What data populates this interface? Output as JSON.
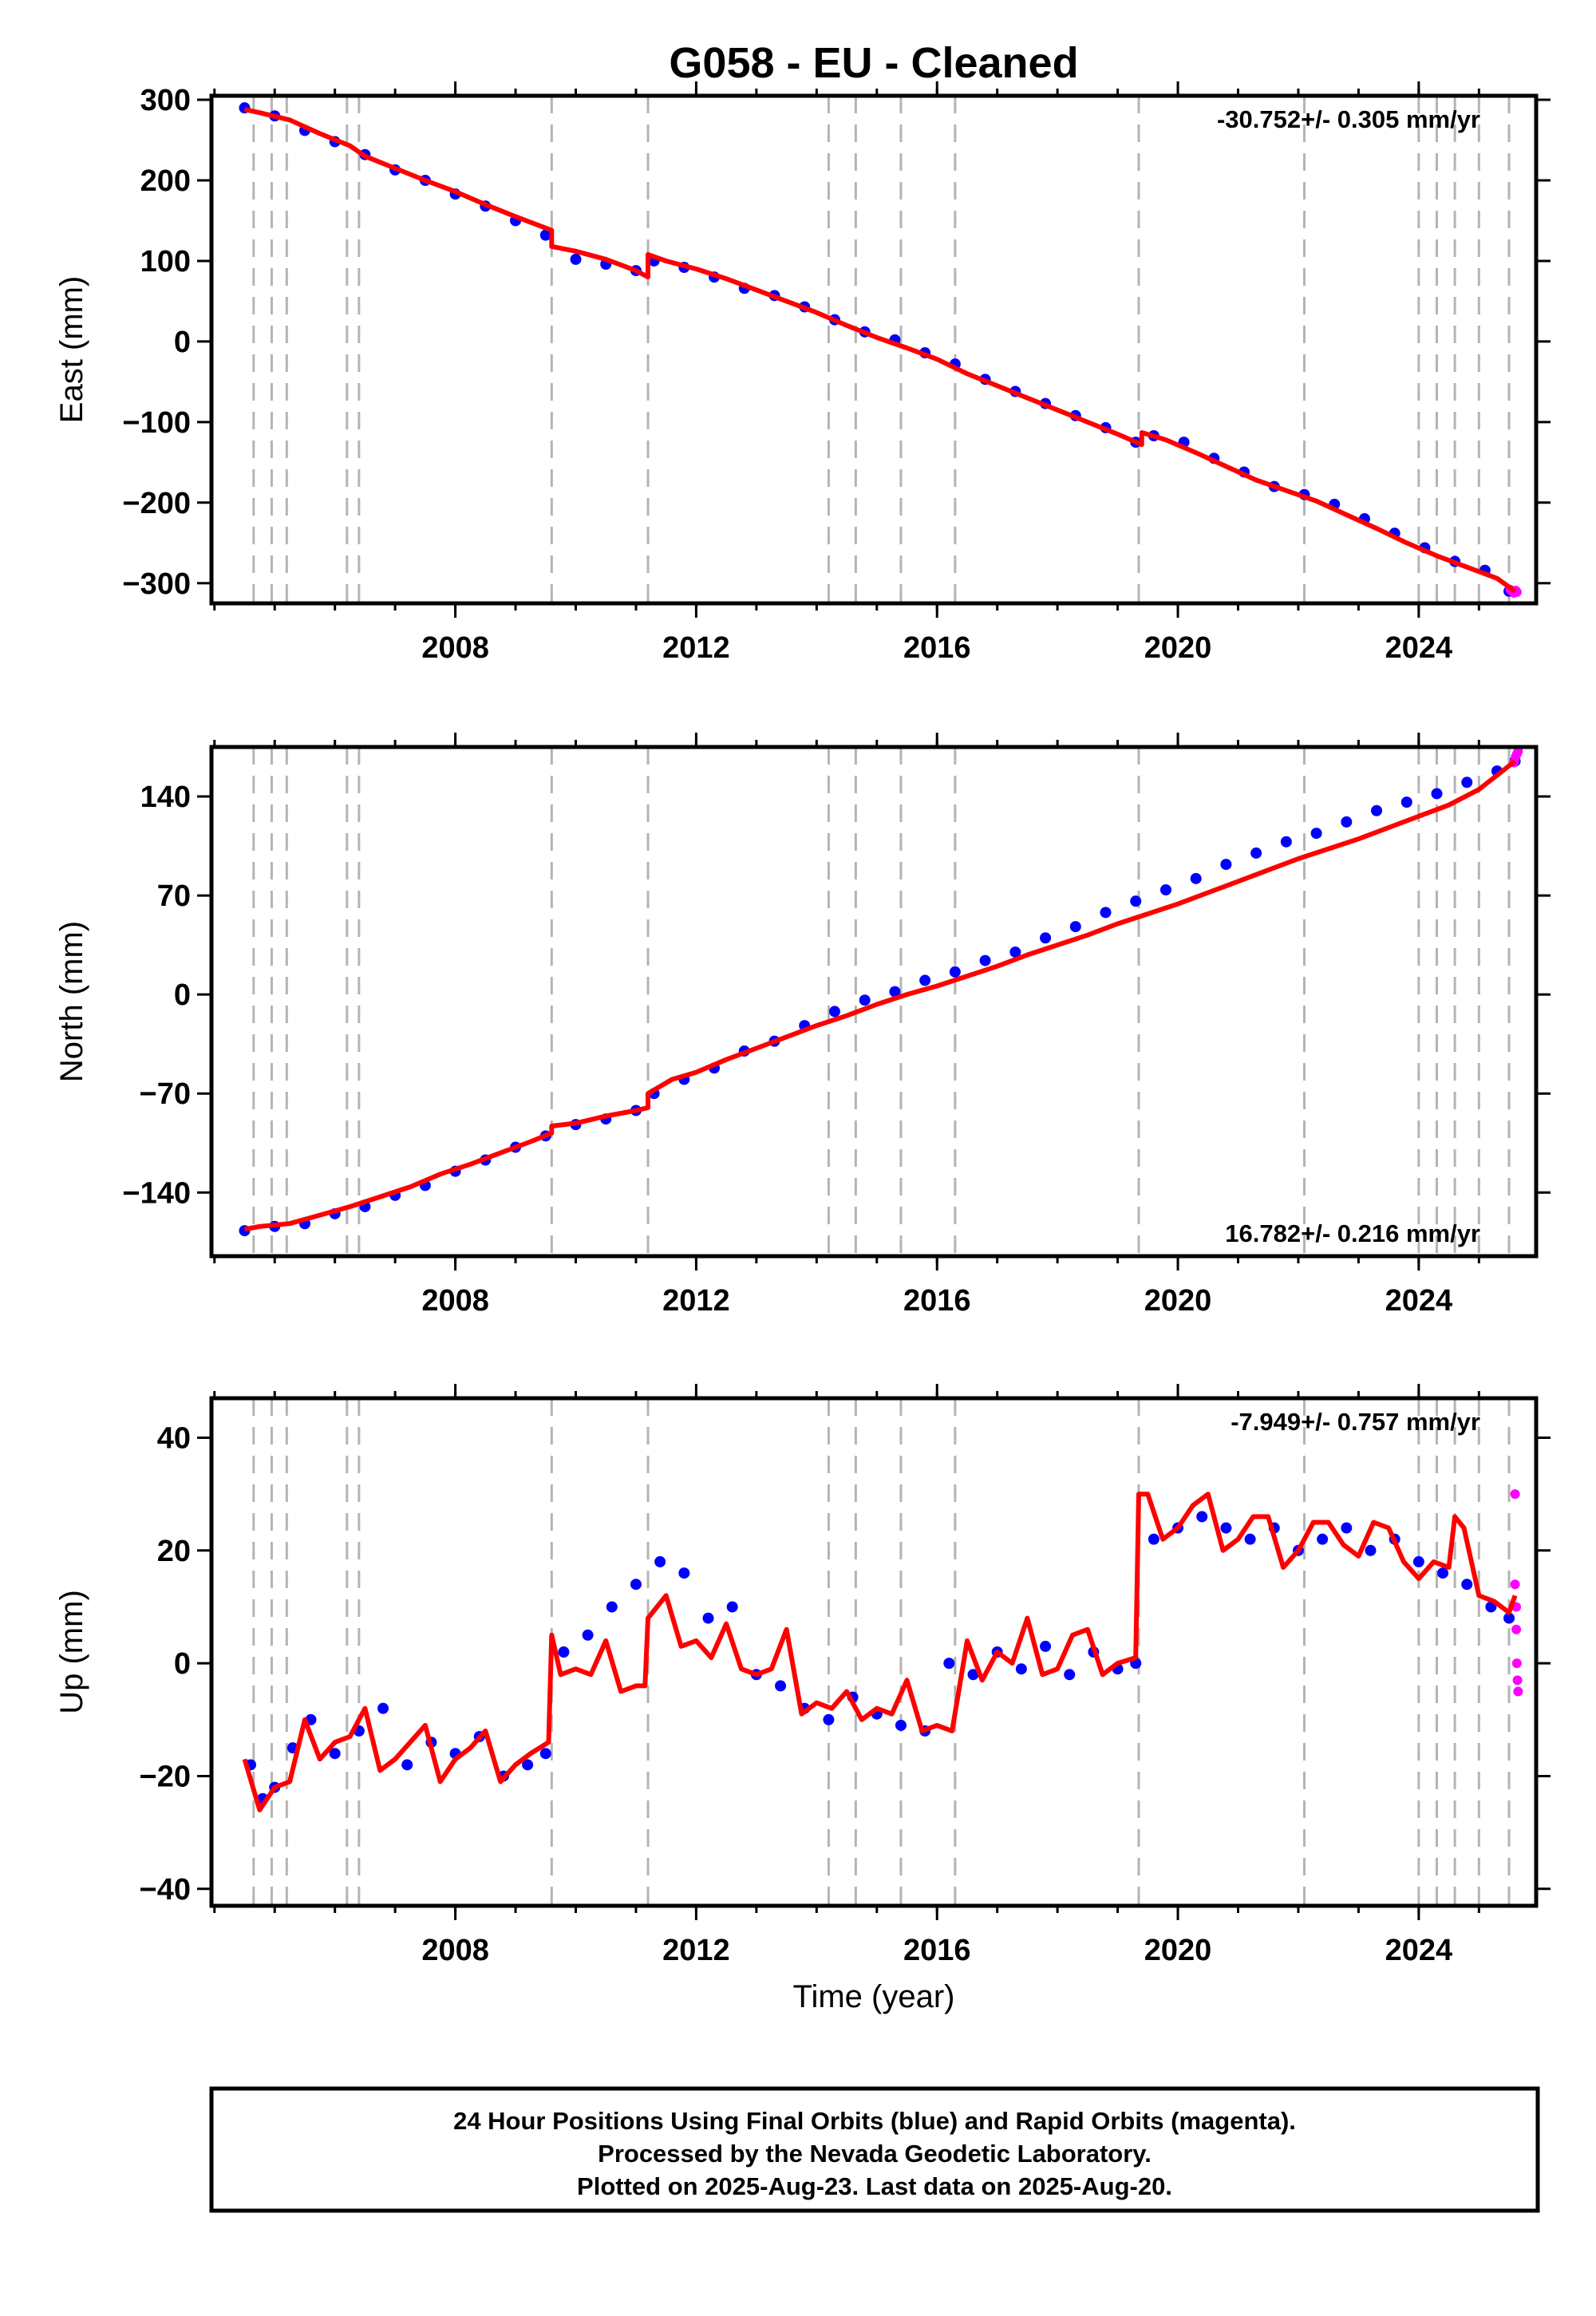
{
  "title": "G058  - EU - Cleaned",
  "chart_data": [
    {
      "type": "scatter",
      "panel": "east",
      "ylabel": "East (mm)",
      "xlabel": "",
      "xlim": [
        2003.95,
        2025.95
      ],
      "ylim": [
        -325,
        305
      ],
      "xticks": [
        2008,
        2012,
        2016,
        2020,
        2024
      ],
      "yticks": [
        300,
        200,
        100,
        0,
        -100,
        -200,
        -300
      ],
      "ytick_labels": [
        "300",
        "200",
        "100",
        "0",
        "−100",
        "−200",
        "−300"
      ],
      "rate_text": "-30.752+/- 0.305 mm/yr",
      "rate_position": "top-right",
      "grid": false,
      "series": [
        {
          "name": "Final Orbits (blue)",
          "color": "#0000ff",
          "kind": "points",
          "x": [
            2004.5,
            2005.0,
            2005.5,
            2006.0,
            2006.5,
            2007.0,
            2007.5,
            2008.0,
            2008.5,
            2009.0,
            2009.5,
            2010.0,
            2010.5,
            2011.0,
            2011.3,
            2011.8,
            2012.3,
            2012.8,
            2013.3,
            2013.8,
            2014.3,
            2014.8,
            2015.3,
            2015.8,
            2016.3,
            2016.8,
            2017.3,
            2017.8,
            2018.3,
            2018.8,
            2019.3,
            2019.6,
            2020.1,
            2020.6,
            2021.1,
            2021.6,
            2022.1,
            2022.6,
            2023.1,
            2023.6,
            2024.1,
            2024.6,
            2025.1,
            2025.5
          ],
          "y": [
            290,
            280,
            262,
            248,
            232,
            213,
            200,
            183,
            168,
            150,
            132,
            102,
            96,
            88,
            100,
            92,
            80,
            66,
            57,
            43,
            27,
            12,
            2,
            -14,
            -28,
            -47,
            -62,
            -77,
            -92,
            -107,
            -125,
            -117,
            -125,
            -145,
            -162,
            -180,
            -190,
            -202,
            -220,
            -238,
            -256,
            -273,
            -284,
            -310
          ]
        },
        {
          "name": "Rapid Orbits (magenta)",
          "color": "#ff00ff",
          "kind": "points",
          "x": [
            2025.52,
            2025.55,
            2025.58,
            2025.61,
            2025.63
          ],
          "y": [
            -308,
            -310,
            -312,
            -309,
            -311
          ]
        },
        {
          "name": "Model",
          "color": "#ff0000",
          "kind": "line",
          "x": [
            2004.5,
            2004.75,
            2005.25,
            2005.75,
            2006.25,
            2006.5,
            2007.0,
            2007.5,
            2008.0,
            2008.5,
            2009.0,
            2009.6,
            2009.6,
            2010.0,
            2010.5,
            2011.0,
            2011.2,
            2011.2,
            2011.5,
            2012.0,
            2012.5,
            2013.0,
            2013.5,
            2014.0,
            2014.5,
            2015.0,
            2015.5,
            2016.0,
            2016.5,
            2017.0,
            2017.5,
            2018.0,
            2018.5,
            2019.0,
            2019.4,
            2019.4,
            2019.8,
            2020.3,
            2020.8,
            2021.3,
            2021.8,
            2022.3,
            2022.8,
            2023.3,
            2023.8,
            2024.3,
            2024.8,
            2025.3,
            2025.6
          ],
          "y": [
            288,
            284,
            275,
            258,
            243,
            230,
            215,
            200,
            186,
            170,
            155,
            138,
            118,
            112,
            102,
            88,
            80,
            108,
            100,
            90,
            78,
            64,
            50,
            36,
            20,
            5,
            -8,
            -22,
            -40,
            -55,
            -70,
            -85,
            -100,
            -115,
            -128,
            -113,
            -122,
            -138,
            -155,
            -172,
            -185,
            -198,
            -215,
            -232,
            -250,
            -266,
            -280,
            -294,
            -310
          ]
        }
      ]
    },
    {
      "type": "scatter",
      "panel": "north",
      "ylabel": "North (mm)",
      "xlabel": "",
      "xlim": [
        2003.95,
        2025.95
      ],
      "ylim": [
        -185,
        175
      ],
      "xticks": [
        2008,
        2012,
        2016,
        2020,
        2024
      ],
      "yticks": [
        140,
        70,
        0,
        -70,
        -140
      ],
      "ytick_labels": [
        "140",
        "70",
        "0",
        "−70",
        "−140"
      ],
      "rate_text": "16.782+/- 0.216 mm/yr",
      "rate_position": "bottom-right",
      "grid": false,
      "series": [
        {
          "name": "Final Orbits (blue)",
          "color": "#0000ff",
          "kind": "points",
          "x": [
            2004.5,
            2005.0,
            2005.5,
            2006.0,
            2006.5,
            2007.0,
            2007.5,
            2008.0,
            2008.5,
            2009.0,
            2009.5,
            2010.0,
            2010.5,
            2011.0,
            2011.3,
            2011.8,
            2012.3,
            2012.8,
            2013.3,
            2013.8,
            2014.3,
            2014.8,
            2015.3,
            2015.8,
            2016.3,
            2016.8,
            2017.3,
            2017.8,
            2018.3,
            2018.8,
            2019.3,
            2019.8,
            2020.3,
            2020.8,
            2021.3,
            2021.8,
            2022.3,
            2022.8,
            2023.3,
            2023.8,
            2024.3,
            2024.8,
            2025.3,
            2025.6
          ],
          "y": [
            -167,
            -164,
            -162,
            -155,
            -150,
            -142,
            -135,
            -125,
            -117,
            -108,
            -100,
            -92,
            -88,
            -82,
            -70,
            -60,
            -52,
            -40,
            -33,
            -22,
            -12,
            -4,
            2,
            10,
            16,
            24,
            30,
            40,
            48,
            58,
            66,
            74,
            82,
            92,
            100,
            108,
            114,
            122,
            130,
            136,
            142,
            150,
            158,
            165
          ]
        },
        {
          "name": "Rapid Orbits (magenta)",
          "color": "#ff00ff",
          "kind": "points",
          "x": [
            2025.58,
            2025.61,
            2025.63,
            2025.65
          ],
          "y": [
            164,
            168,
            170,
            172
          ]
        },
        {
          "name": "Model",
          "color": "#ff0000",
          "kind": "line",
          "x": [
            2004.5,
            2004.75,
            2005.25,
            2005.75,
            2006.25,
            2006.75,
            2007.25,
            2007.75,
            2008.25,
            2008.75,
            2009.25,
            2009.6,
            2009.6,
            2010.0,
            2010.5,
            2011.0,
            2011.2,
            2011.2,
            2011.6,
            2012.0,
            2012.5,
            2013.0,
            2013.5,
            2014.0,
            2014.5,
            2015.0,
            2015.5,
            2016.0,
            2016.5,
            2017.0,
            2017.5,
            2018.0,
            2018.5,
            2019.0,
            2019.5,
            2020.0,
            2020.5,
            2021.0,
            2021.5,
            2022.0,
            2022.5,
            2023.0,
            2023.5,
            2024.0,
            2024.5,
            2025.0,
            2025.6
          ],
          "y": [
            -166,
            -164,
            -162,
            -156,
            -150,
            -143,
            -136,
            -127,
            -120,
            -112,
            -104,
            -98,
            -93,
            -91,
            -86,
            -82,
            -80,
            -70,
            -60,
            -55,
            -46,
            -38,
            -30,
            -22,
            -15,
            -7,
            0,
            6,
            13,
            20,
            28,
            35,
            42,
            50,
            57,
            64,
            72,
            80,
            88,
            96,
            103,
            110,
            118,
            126,
            134,
            145,
            165
          ]
        }
      ]
    },
    {
      "type": "scatter",
      "panel": "up",
      "ylabel": "Up (mm)",
      "xlabel": "Time (year)",
      "xlim": [
        2003.95,
        2025.95
      ],
      "ylim": [
        -43,
        47
      ],
      "xticks": [
        2008,
        2012,
        2016,
        2020,
        2024
      ],
      "yticks": [
        40,
        20,
        0,
        -20,
        -40
      ],
      "ytick_labels": [
        "40",
        "20",
        "0",
        "−20",
        "−40"
      ],
      "rate_text": "-7.949+/- 0.757 mm/yr",
      "rate_position": "top-right",
      "grid": false,
      "series": [
        {
          "name": "Final Orbits (blue)",
          "color": "#0000ff",
          "kind": "points",
          "x": [
            2004.6,
            2004.8,
            2005.0,
            2005.3,
            2005.6,
            2006.0,
            2006.4,
            2006.8,
            2007.2,
            2007.6,
            2008.0,
            2008.4,
            2008.8,
            2009.2,
            2009.5,
            2009.8,
            2010.2,
            2010.6,
            2011.0,
            2011.4,
            2011.8,
            2012.2,
            2012.6,
            2013.0,
            2013.4,
            2013.8,
            2014.2,
            2014.6,
            2015.0,
            2015.4,
            2015.8,
            2016.2,
            2016.6,
            2017.0,
            2017.4,
            2017.8,
            2018.2,
            2018.6,
            2019.0,
            2019.3,
            2019.6,
            2020.0,
            2020.4,
            2020.8,
            2021.2,
            2021.6,
            2022.0,
            2022.4,
            2022.8,
            2023.2,
            2023.6,
            2024.0,
            2024.4,
            2024.8,
            2025.2,
            2025.5
          ],
          "y": [
            -18,
            -24,
            -22,
            -15,
            -10,
            -16,
            -12,
            -8,
            -18,
            -14,
            -16,
            -13,
            -20,
            -18,
            -16,
            2,
            5,
            10,
            14,
            18,
            16,
            8,
            10,
            -2,
            -4,
            -8,
            -10,
            -6,
            -9,
            -11,
            -12,
            0,
            -2,
            2,
            -1,
            3,
            -2,
            2,
            -1,
            0,
            22,
            24,
            26,
            24,
            22,
            24,
            20,
            22,
            24,
            20,
            22,
            18,
            16,
            14,
            10,
            8
          ]
        },
        {
          "name": "Rapid Orbits (magenta)",
          "color": "#ff00ff",
          "kind": "points",
          "x": [
            2025.6,
            2025.6,
            2025.62,
            2025.62,
            2025.63,
            2025.64,
            2025.65
          ],
          "y": [
            30,
            14,
            10,
            6,
            0,
            -3,
            -5
          ]
        },
        {
          "name": "Model",
          "color": "#ff0000",
          "kind": "line",
          "x": [
            2004.5,
            2004.75,
            2005.0,
            2005.25,
            2005.5,
            2005.75,
            2006.0,
            2006.25,
            2006.5,
            2006.75,
            2007.0,
            2007.25,
            2007.5,
            2007.75,
            2008.0,
            2008.25,
            2008.5,
            2008.75,
            2009.0,
            2009.25,
            2009.55,
            2009.6,
            2009.75,
            2010.0,
            2010.25,
            2010.5,
            2010.75,
            2011.0,
            2011.15,
            2011.2,
            2011.5,
            2011.75,
            2012.0,
            2012.25,
            2012.5,
            2012.75,
            2013.0,
            2013.25,
            2013.5,
            2013.75,
            2014.0,
            2014.25,
            2014.5,
            2014.75,
            2015.0,
            2015.25,
            2015.5,
            2015.75,
            2016.0,
            2016.25,
            2016.5,
            2016.75,
            2017.0,
            2017.25,
            2017.5,
            2017.75,
            2018.0,
            2018.25,
            2018.5,
            2018.75,
            2019.0,
            2019.3,
            2019.35,
            2019.5,
            2019.75,
            2020.0,
            2020.25,
            2020.5,
            2020.75,
            2021.0,
            2021.25,
            2021.5,
            2021.75,
            2022.0,
            2022.25,
            2022.5,
            2022.75,
            2023.0,
            2023.25,
            2023.5,
            2023.75,
            2024.0,
            2024.25,
            2024.5,
            2024.6,
            2024.75,
            2025.0,
            2025.25,
            2025.5,
            2025.6
          ],
          "y": [
            -17,
            -26,
            -22,
            -21,
            -10,
            -17,
            -14,
            -13,
            -8,
            -19,
            -17,
            -14,
            -11,
            -21,
            -17,
            -15,
            -12,
            -21,
            -18,
            -16,
            -14,
            5,
            -2,
            -1,
            -2,
            4,
            -5,
            -4,
            -4,
            8,
            12,
            3,
            4,
            1,
            7,
            -1,
            -2,
            -1,
            6,
            -9,
            -7,
            -8,
            -5,
            -10,
            -8,
            -9,
            -3,
            -12,
            -11,
            -12,
            4,
            -3,
            2,
            0,
            8,
            -2,
            -1,
            5,
            6,
            -2,
            0,
            1,
            30,
            30,
            22,
            24,
            28,
            30,
            20,
            22,
            26,
            26,
            17,
            20,
            25,
            25,
            21,
            19,
            25,
            24,
            18,
            15,
            18,
            17,
            26,
            24,
            12,
            11,
            9,
            12
          ]
        }
      ]
    }
  ],
  "footer": {
    "line1": "24 Hour Positions Using Final Orbits (blue) and Rapid Orbits (magenta).",
    "line2": "Processed by the Nevada Geodetic Laboratory.",
    "line3": "Plotted on 2025-Aug-23. Last data on 2025-Aug-20."
  },
  "colors": {
    "final_orbits": "#0000ff",
    "rapid_orbits": "#ff00ff",
    "model": "#ff0000",
    "event_lines": "#b4b4b4",
    "frame": "#000000"
  },
  "event_lines_years": [
    2004.65,
    2004.95,
    2005.2,
    2006.2,
    2006.4,
    2009.6,
    2011.2,
    2014.2,
    2014.65,
    2015.4,
    2016.3,
    2019.35,
    2022.1,
    2024.0,
    2024.3,
    2024.6,
    2025.0,
    2025.5
  ]
}
